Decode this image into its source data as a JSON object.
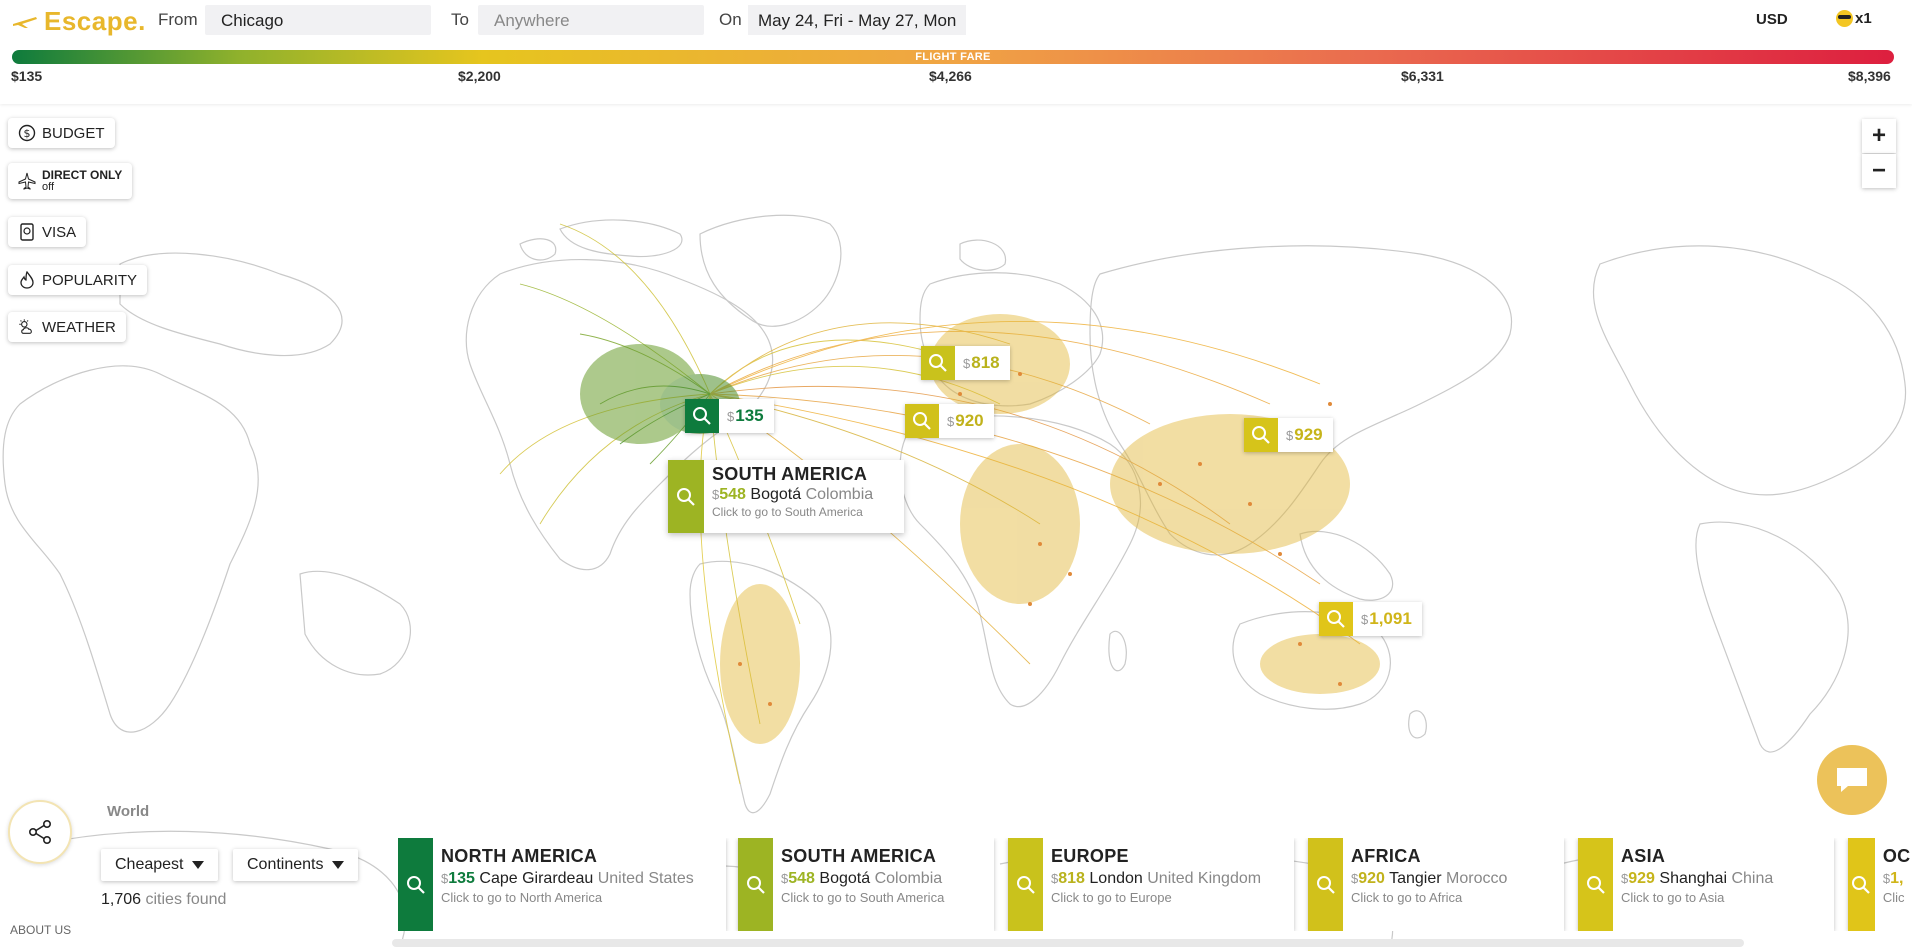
{
  "header": {
    "logo": "Escape.",
    "from_label": "From",
    "from_value": "Chicago",
    "to_label": "To",
    "to_placeholder": "Anywhere",
    "on_label": "On",
    "dates": "May 24, Fri - May 27, Mon",
    "currency": "USD",
    "travellers": "x1"
  },
  "fare_scale": {
    "title": "FLIGHT FARE",
    "ticks": [
      "$135",
      "$2,200",
      "$4,266",
      "$6,331",
      "$8,396"
    ]
  },
  "filters": {
    "budget": "BUDGET",
    "direct_title": "DIRECT ONLY",
    "direct_state": "off",
    "visa": "VISA",
    "popularity": "POPULARITY",
    "weather": "WEATHER"
  },
  "zoom": {
    "in": "+",
    "out": "−"
  },
  "markers": {
    "currency_symbol": "$",
    "north_america": "135",
    "europe": "818",
    "africa": "920",
    "asia": "929",
    "oceania": "1,091"
  },
  "tooltip": {
    "title": "SOUTH AMERICA",
    "currency_symbol": "$",
    "price": "548",
    "city": "Bogotá",
    "country": "Colombia",
    "hint": "Click to go to South America"
  },
  "bottom": {
    "region": "World",
    "sort": "Cheapest",
    "group": "Continents",
    "count": "1,706",
    "count_suffix": "cities found",
    "about": "ABOUT US"
  },
  "cards": [
    {
      "title": "NORTH AMERICA",
      "sym": "$",
      "price": "135",
      "city": "Cape Girardeau",
      "country": "United States",
      "hint": "Click to go to North America",
      "color": "#0e7b3d"
    },
    {
      "title": "SOUTH AMERICA",
      "sym": "$",
      "price": "548",
      "city": "Bogotá",
      "country": "Colombia",
      "hint": "Click to go to South America",
      "color": "#9db423"
    },
    {
      "title": "EUROPE",
      "sym": "$",
      "price": "818",
      "city": "London",
      "country": "United Kingdom",
      "hint": "Click to go to Europe",
      "color": "#c9c21c"
    },
    {
      "title": "AFRICA",
      "sym": "$",
      "price": "920",
      "city": "Tangier",
      "country": "Morocco",
      "hint": "Click to go to Africa",
      "color": "#d1c11b"
    },
    {
      "title": "ASIA",
      "sym": "$",
      "price": "929",
      "city": "Shanghai",
      "country": "China",
      "hint": "Click to go to Asia",
      "color": "#d6c41a"
    },
    {
      "title": "OC",
      "sym": "$",
      "price": "1,",
      "city": "",
      "country": "",
      "hint": "Clic",
      "color": "#e0c519"
    }
  ],
  "colors": {
    "accent": "#e8b72c",
    "green": "#0e7b3d",
    "olive": "#9db423",
    "yellow": "#d6c41a",
    "chat": "#ecc25a"
  },
  "icons": {
    "logo": "plane-icon",
    "marker": "search-icon",
    "share": "share-icon",
    "chat": "chat-bubble-icon"
  }
}
